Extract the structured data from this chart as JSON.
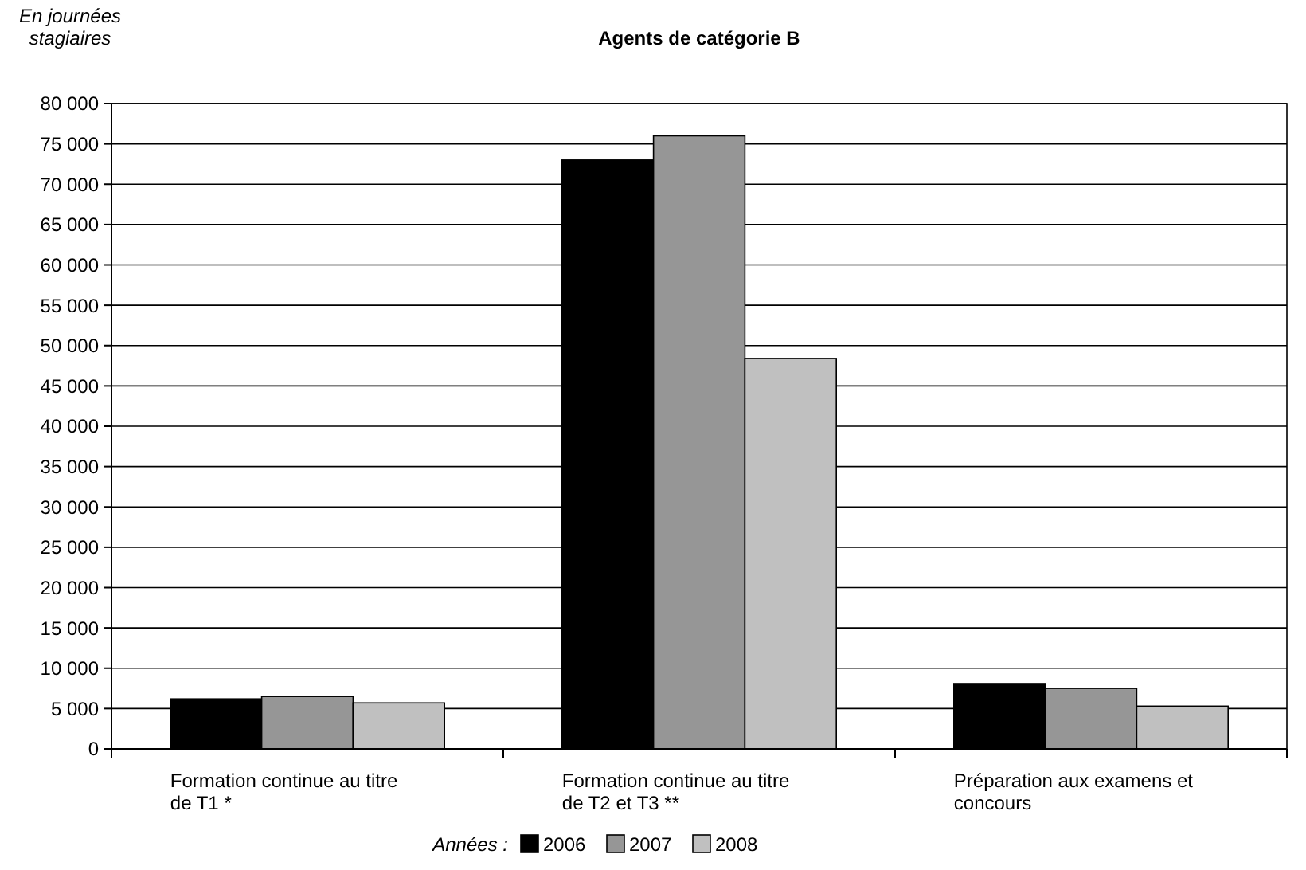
{
  "chart_data": {
    "type": "bar",
    "title": "Agents de catégorie B",
    "ylabel": "En journées stagiaires",
    "legend_title": "Années :",
    "categories": [
      "Formation continue au titre de T1 *",
      "Formation continue au titre de T2 et T3 **",
      "Préparation aux examens et concours"
    ],
    "series": [
      {
        "name": "2006",
        "color": "#000000",
        "values": [
          6200,
          73000,
          8100
        ]
      },
      {
        "name": "2007",
        "color": "#969696",
        "values": [
          6500,
          76000,
          7500
        ]
      },
      {
        "name": "2008",
        "color": "#c0c0c0",
        "values": [
          5700,
          48400,
          5300
        ]
      }
    ],
    "ylim": [
      0,
      80000
    ],
    "yticks": [
      {
        "value": 0,
        "label": "0"
      },
      {
        "value": 5000,
        "label": "5 000"
      },
      {
        "value": 10000,
        "label": "10 000"
      },
      {
        "value": 15000,
        "label": "15 000"
      },
      {
        "value": 20000,
        "label": "20 000"
      },
      {
        "value": 25000,
        "label": "25 000"
      },
      {
        "value": 30000,
        "label": "30 000"
      },
      {
        "value": 35000,
        "label": "35 000"
      },
      {
        "value": 40000,
        "label": "40 000"
      },
      {
        "value": 45000,
        "label": "45 000"
      },
      {
        "value": 50000,
        "label": "50 000"
      },
      {
        "value": 55000,
        "label": "55 000"
      },
      {
        "value": 60000,
        "label": "60 000"
      },
      {
        "value": 65000,
        "label": "65 000"
      },
      {
        "value": 70000,
        "label": "70 000"
      },
      {
        "value": 75000,
        "label": "75 000"
      },
      {
        "value": 80000,
        "label": "80 000"
      }
    ],
    "grid": "y",
    "legend": "bottom"
  }
}
